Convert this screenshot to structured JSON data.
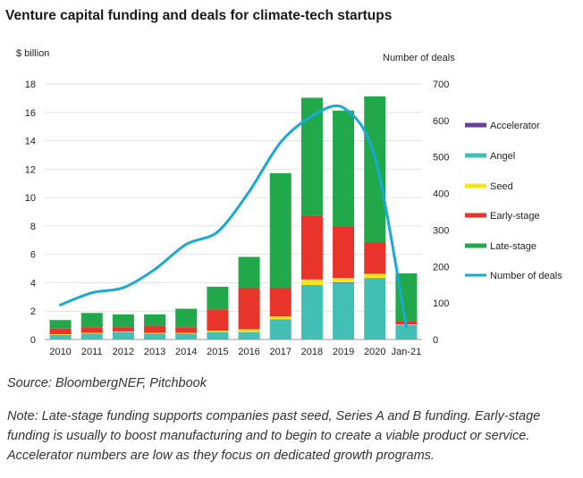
{
  "title": "Venture capital funding and deals for climate-tech startups",
  "source": "Source: BloombergNEF, Pitchbook",
  "note": "Note: Late-stage funding supports companies past seed, Series A and B funding. Early-stage funding is usually to boost manufacturing and to begin to create a viable product or service. Accelerator numbers are low as they focus on dedicated growth programs.",
  "colors": {
    "Accelerator": "#6a3d9a",
    "Angel": "#43c0b5",
    "Seed": "#f5e61c",
    "Early-stage": "#e8342a",
    "Late-stage": "#21a84a",
    "Number of deals": "#1aa9d6"
  },
  "chart_data": {
    "type": "bar",
    "stacked": true,
    "ylabel": "$ billion",
    "y2label": "Number of deals",
    "ylim": [
      0,
      18
    ],
    "y2lim": [
      0,
      700
    ],
    "yticks": [
      "0",
      "2",
      "4",
      "6",
      "8",
      "10",
      "12",
      "14",
      "16",
      "18"
    ],
    "y2ticks": [
      "0",
      "100",
      "200",
      "300",
      "400",
      "500",
      "600",
      "700"
    ],
    "categories": [
      "2010",
      "2011",
      "2012",
      "2013",
      "2014",
      "2015",
      "2016",
      "2017",
      "2018",
      "2019",
      "2020",
      "Jan-21"
    ],
    "series": [
      {
        "name": "Accelerator",
        "values": [
          0.02,
          0.02,
          0.02,
          0.02,
          0.02,
          0.02,
          0.02,
          0.02,
          0.03,
          0.03,
          0.03,
          0.01
        ]
      },
      {
        "name": "Angel",
        "values": [
          0.3,
          0.4,
          0.5,
          0.4,
          0.4,
          0.5,
          0.5,
          1.4,
          3.8,
          4.0,
          4.3,
          1.0
        ]
      },
      {
        "name": "Seed",
        "values": [
          0.05,
          0.05,
          0.05,
          0.05,
          0.05,
          0.1,
          0.2,
          0.2,
          0.4,
          0.3,
          0.3,
          0.05
        ]
      },
      {
        "name": "Early-stage",
        "values": [
          0.4,
          0.4,
          0.3,
          0.5,
          0.4,
          1.5,
          2.9,
          2.0,
          4.5,
          3.6,
          2.2,
          0.2
        ]
      },
      {
        "name": "Late-stage",
        "values": [
          0.6,
          1.0,
          0.9,
          0.8,
          1.3,
          1.6,
          2.2,
          8.1,
          8.3,
          8.2,
          10.3,
          3.4
        ]
      }
    ],
    "line": {
      "name": "Number of deals",
      "axis": "right",
      "values": [
        95,
        128,
        142,
        192,
        261,
        295,
        405,
        540,
        612,
        635,
        500,
        35
      ]
    },
    "legend": [
      "Accelerator",
      "Angel",
      "Seed",
      "Early-stage",
      "Late-stage",
      "Number of deals"
    ]
  }
}
